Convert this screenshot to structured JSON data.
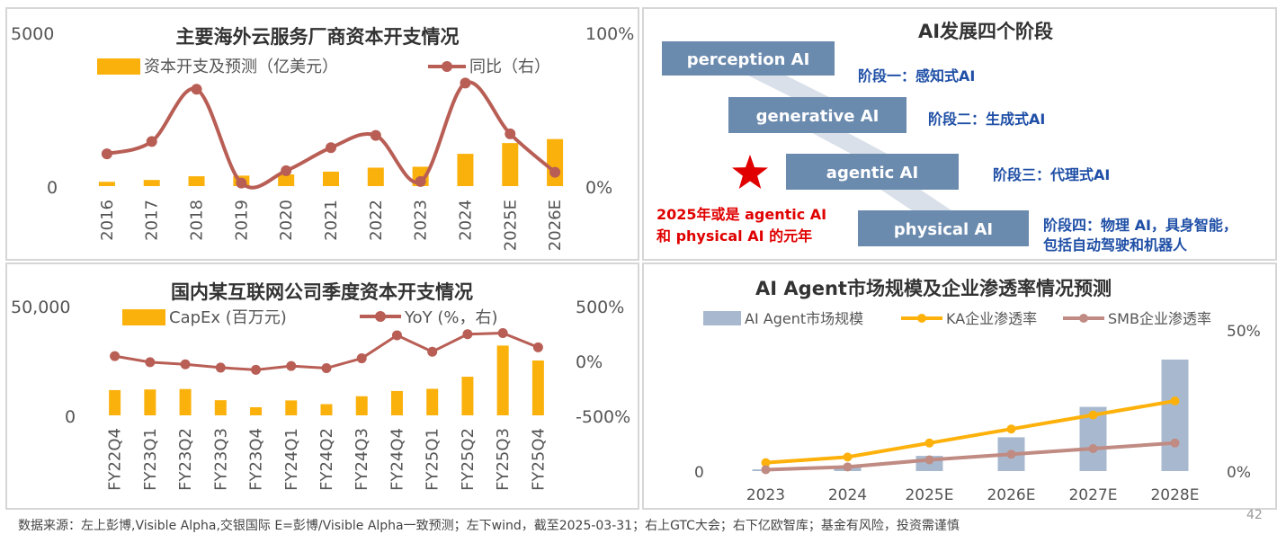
{
  "chart_data": [
    {
      "type": "bar+line",
      "title": "主要海外云服务厂商资本开支情况",
      "categories": [
        "2016",
        "2017",
        "2018",
        "2019",
        "2020",
        "2021",
        "2022",
        "2023",
        "2024",
        "2025E",
        "2026E"
      ],
      "series": [
        {
          "name": "资本开支及预测（亿美元）",
          "type": "bar",
          "axis": "left",
          "values": [
            140,
            200,
            320,
            340,
            380,
            470,
            600,
            630,
            1050,
            1400,
            1530
          ]
        },
        {
          "name": "同比（右）",
          "type": "line",
          "axis": "right",
          "values": [
            0.21,
            0.29,
            0.63,
            0.02,
            0.1,
            0.25,
            0.33,
            0.03,
            0.67,
            0.34,
            0.09
          ]
        }
      ],
      "y_left": {
        "range": [
          0,
          5000
        ],
        "ticks": [
          "0",
          "5000"
        ]
      },
      "y_right": {
        "range": [
          0,
          1
        ],
        "ticks": [
          "0%",
          "100%"
        ]
      }
    },
    {
      "type": "bar+line",
      "title": "国内某互联网公司季度资本开支情况",
      "categories": [
        "FY22Q4",
        "FY23Q1",
        "FY23Q2",
        "FY23Q3",
        "FY23Q4",
        "FY24Q1",
        "FY24Q2",
        "FY24Q3",
        "FY24Q4",
        "FY25Q1",
        "FY25Q2",
        "FY25Q3",
        "FY25Q4"
      ],
      "series": [
        {
          "name": "CapEx (百万元)",
          "type": "bar",
          "axis": "left",
          "values": [
            11500,
            11800,
            12000,
            6900,
            3700,
            6800,
            5100,
            8700,
            11100,
            12100,
            17600,
            31800,
            25000
          ]
        },
        {
          "name": "YoY (%，右)",
          "type": "line",
          "axis": "right",
          "values": [
            40,
            -15,
            -35,
            -65,
            -85,
            -50,
            -70,
            20,
            230,
            80,
            240,
            250,
            120
          ]
        }
      ],
      "y_left": {
        "range": [
          0,
          50000
        ],
        "ticks": [
          "0",
          "50,000"
        ]
      },
      "y_right": {
        "range": [
          -500,
          500
        ],
        "ticks": [
          "-500%",
          "0%",
          "500%"
        ]
      }
    },
    {
      "type": "bar+line",
      "title": "AI Agent市场规模及企业渗透率情况预测",
      "categories": [
        "2023",
        "2024",
        "2025E",
        "2026E",
        "2027E",
        "2028E"
      ],
      "series": [
        {
          "name": "AI Agent市场规模",
          "type": "bar",
          "axis": "left",
          "values": [
            1,
            3,
            9,
            20,
            38,
            66
          ]
        },
        {
          "name": "KA企业渗透率",
          "type": "line",
          "axis": "right",
          "values": [
            0.03,
            0.05,
            0.1,
            0.15,
            0.2,
            0.25
          ]
        },
        {
          "name": "SMB企业渗透率",
          "type": "line",
          "axis": "right",
          "values": [
            0.005,
            0.015,
            0.04,
            0.06,
            0.08,
            0.1
          ]
        }
      ],
      "y_left": {
        "range": [
          0,
          83
        ],
        "ticks": [
          "0"
        ]
      },
      "y_right": {
        "range": [
          0,
          0.5
        ],
        "ticks": [
          "0%",
          "50%"
        ]
      }
    }
  ],
  "stages": {
    "title": "AI发展四个阶段",
    "items": [
      {
        "box": "perception AI",
        "label": "阶段一：感知式AI"
      },
      {
        "box": "generative AI",
        "label": "阶段二：生成式AI"
      },
      {
        "box": "agentic AI",
        "label": "阶段三：代理式AI"
      },
      {
        "box": "physical AI",
        "label": "阶段四：物理 AI，具身智能，",
        "label2": "包括自动驾驶和机器人"
      }
    ],
    "note_line1": "2025年或是 agentic AI",
    "note_line2": "和 physical AI 的元年"
  },
  "colors": {
    "bar_orange": "#fbb10c",
    "line_brown": "#b85e55",
    "bar_blue": "#a8b9cf",
    "ka_orange": "#fdb10a",
    "smb_brown": "#c08b82",
    "stage_box": "#6a8aae",
    "stage_label": "#1f4fa6",
    "star_red": "#e00000",
    "note_red": "#e00000"
  },
  "footer": "数据来源：左上彭博,Visible Alpha,交银国际 E=彭博/Visible Alpha一致预测；左下wind，截至2025-03-31；右上GTC大会；右下亿欧智库；基金有风险，投资需谨慎",
  "page_number": "42"
}
